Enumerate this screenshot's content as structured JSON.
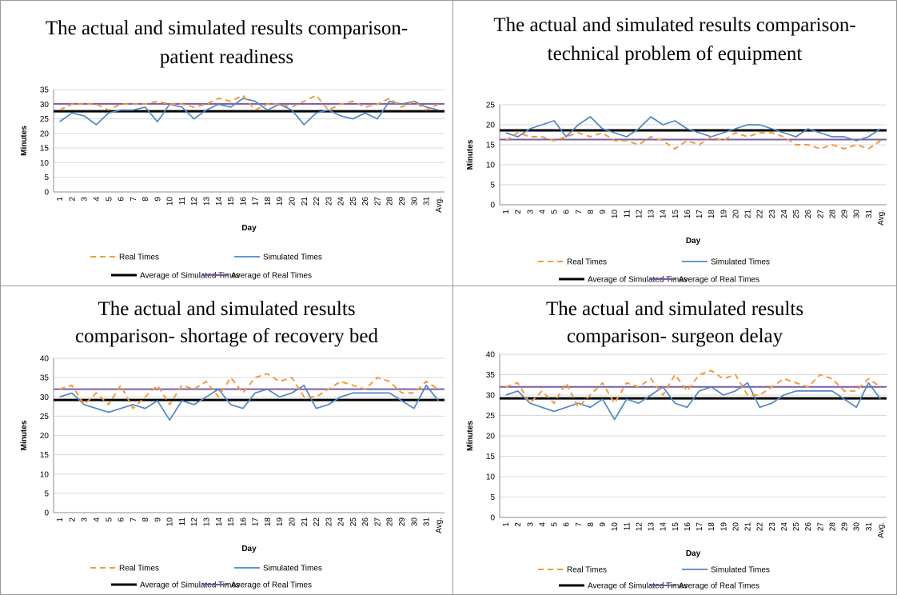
{
  "colors": {
    "real": "#f39a3c",
    "simulated": "#4f86c6",
    "avg_simulated": "#000000",
    "avg_real": "#7a5ca6",
    "axis": "#8c8c8c",
    "grid": "#d9d9d9"
  },
  "chart_data": [
    {
      "type": "line",
      "title": "The actual and simulated results comparison-patient readiness",
      "title_lines": [
        "The actual and simulated results comparison-",
        "patient readiness"
      ],
      "xlabel": "Day",
      "ylabel": "Minutes",
      "ylim": [
        0,
        35
      ],
      "yticks": [
        0,
        5,
        10,
        15,
        20,
        25,
        30,
        35
      ],
      "grid": true,
      "legend_position": "bottom",
      "categories": [
        "1",
        "2",
        "3",
        "4",
        "5",
        "6",
        "7",
        "8",
        "9",
        "10",
        "11",
        "12",
        "13",
        "14",
        "15",
        "16",
        "17",
        "18",
        "19",
        "20",
        "21",
        "22",
        "23",
        "24",
        "25",
        "26",
        "27",
        "28",
        "29",
        "30",
        "31",
        "Avg."
      ],
      "series": [
        {
          "name": "Real Times",
          "style": "dashed",
          "values": [
            28,
            30,
            30,
            30,
            28,
            30,
            30,
            30,
            31,
            30,
            30,
            29,
            30,
            32,
            31,
            33,
            28,
            30,
            30,
            29,
            31,
            33,
            28,
            30,
            31,
            29,
            30,
            32,
            29,
            31,
            28,
            30
          ]
        },
        {
          "name": "Simulated Times",
          "style": "solid",
          "values": [
            24,
            27,
            26,
            23,
            27,
            28,
            28,
            29,
            24,
            30,
            29,
            25,
            28,
            30,
            29,
            32,
            31,
            28,
            30,
            28,
            23,
            27,
            28,
            26,
            25,
            27,
            25,
            31,
            30,
            31,
            29,
            28
          ]
        },
        {
          "name": "Average of Simulated Times",
          "style": "solid-thick",
          "constant": 27.6
        },
        {
          "name": "Average of Real Times",
          "style": "solid",
          "constant": 30.1
        }
      ]
    },
    {
      "type": "line",
      "title": "The actual and simulated results comparison-technical problem of equipment",
      "title_lines": [
        "The actual and simulated results comparison-",
        "technical problem of equipment"
      ],
      "xlabel": "Day",
      "ylabel": "Minutes",
      "ylim": [
        0,
        25
      ],
      "yticks": [
        0,
        5,
        10,
        15,
        20,
        25
      ],
      "grid": true,
      "legend_position": "bottom",
      "categories": [
        "1",
        "2",
        "3",
        "4",
        "5",
        "6",
        "7",
        "8",
        "9",
        "10",
        "11",
        "12",
        "13",
        "14",
        "15",
        "16",
        "17",
        "18",
        "19",
        "20",
        "21",
        "22",
        "23",
        "24",
        "25",
        "26",
        "27",
        "28",
        "29",
        "30",
        "31",
        "Avg."
      ],
      "series": [
        {
          "name": "Real Times",
          "style": "dashed",
          "values": [
            16,
            18,
            17,
            17,
            16,
            17,
            18,
            17,
            18,
            16,
            16,
            15,
            17,
            16,
            14,
            16,
            15,
            17,
            16,
            18,
            17,
            18,
            18,
            17,
            15,
            15,
            14,
            15,
            14,
            15,
            14,
            16
          ]
        },
        {
          "name": "Simulated Times",
          "style": "solid",
          "values": [
            18,
            17,
            19,
            20,
            21,
            17,
            20,
            22,
            19,
            18,
            17,
            19,
            22,
            20,
            21,
            19,
            18,
            17,
            18,
            19,
            20,
            20,
            19,
            18,
            17,
            19,
            18,
            17,
            17,
            16,
            17,
            19
          ]
        },
        {
          "name": "Average of Simulated Times",
          "style": "solid-thick",
          "constant": 18.6
        },
        {
          "name": "Average of Real Times",
          "style": "solid",
          "constant": 16.3
        }
      ]
    },
    {
      "type": "line",
      "title": "The actual and simulated results comparison- shortage of recovery bed",
      "title_lines": [
        "The actual and simulated results",
        "comparison- shortage of recovery bed"
      ],
      "xlabel": "Day",
      "ylabel": "Minutes",
      "ylim": [
        0,
        40
      ],
      "yticks": [
        0,
        5,
        10,
        15,
        20,
        25,
        30,
        35,
        40
      ],
      "grid": true,
      "legend_position": "bottom",
      "categories": [
        "1",
        "2",
        "3",
        "4",
        "5",
        "6",
        "7",
        "8",
        "9",
        "10",
        "11",
        "12",
        "13",
        "14",
        "15",
        "16",
        "17",
        "18",
        "19",
        "20",
        "21",
        "22",
        "23",
        "24",
        "25",
        "26",
        "27",
        "28",
        "29",
        "30",
        "31",
        "Avg."
      ],
      "series": [
        {
          "name": "Real Times",
          "style": "dashed",
          "values": [
            32,
            33,
            28,
            31,
            28,
            33,
            27,
            30,
            33,
            28,
            33,
            32,
            34,
            30,
            35,
            31,
            35,
            36,
            34,
            35,
            30,
            30,
            32,
            34,
            33,
            32,
            35,
            34,
            31,
            31,
            34,
            32
          ]
        },
        {
          "name": "Simulated Times",
          "style": "solid",
          "values": [
            30,
            31,
            28,
            27,
            26,
            27,
            28,
            27,
            29,
            24,
            29,
            28,
            30,
            32,
            28,
            27,
            31,
            32,
            30,
            31,
            33,
            27,
            28,
            30,
            31,
            31,
            31,
            31,
            29,
            27,
            33,
            29
          ]
        },
        {
          "name": "Average of Simulated Times",
          "style": "solid-thick",
          "constant": 29.2
        },
        {
          "name": "Average of Real Times",
          "style": "solid",
          "constant": 32.0
        }
      ]
    },
    {
      "type": "line",
      "title": "The actual and simulated results comparison- surgeon delay",
      "title_lines": [
        "The actual and simulated results",
        "comparison- surgeon delay"
      ],
      "xlabel": "Day",
      "ylabel": "Minutes",
      "ylim": [
        0,
        40
      ],
      "yticks": [
        0,
        5,
        10,
        15,
        20,
        25,
        30,
        35,
        40
      ],
      "grid": true,
      "legend_position": "bottom",
      "categories": [
        "1",
        "2",
        "3",
        "4",
        "5",
        "6",
        "7",
        "8",
        "9",
        "10",
        "11",
        "12",
        "13",
        "14",
        "15",
        "16",
        "17",
        "18",
        "19",
        "20",
        "21",
        "22",
        "23",
        "24",
        "25",
        "26",
        "27",
        "28",
        "29",
        "30",
        "31",
        "Avg."
      ],
      "series": [
        {
          "name": "Real Times",
          "style": "dashed",
          "values": [
            32,
            33,
            28,
            31,
            28,
            33,
            27,
            30,
            33,
            28,
            33,
            32,
            34,
            30,
            35,
            31,
            35,
            36,
            34,
            35,
            30,
            30,
            32,
            34,
            33,
            32,
            35,
            34,
            31,
            31,
            34,
            32
          ]
        },
        {
          "name": "Simulated Times",
          "style": "solid",
          "values": [
            30,
            31,
            28,
            27,
            26,
            27,
            28,
            27,
            29,
            24,
            29,
            28,
            30,
            32,
            28,
            27,
            31,
            32,
            30,
            31,
            33,
            27,
            28,
            30,
            31,
            31,
            31,
            31,
            29,
            27,
            33,
            29
          ]
        },
        {
          "name": "Average of Simulated Times",
          "style": "solid-thick",
          "constant": 29.2
        },
        {
          "name": "Average of Real Times",
          "style": "solid",
          "constant": 32.0
        }
      ]
    }
  ]
}
